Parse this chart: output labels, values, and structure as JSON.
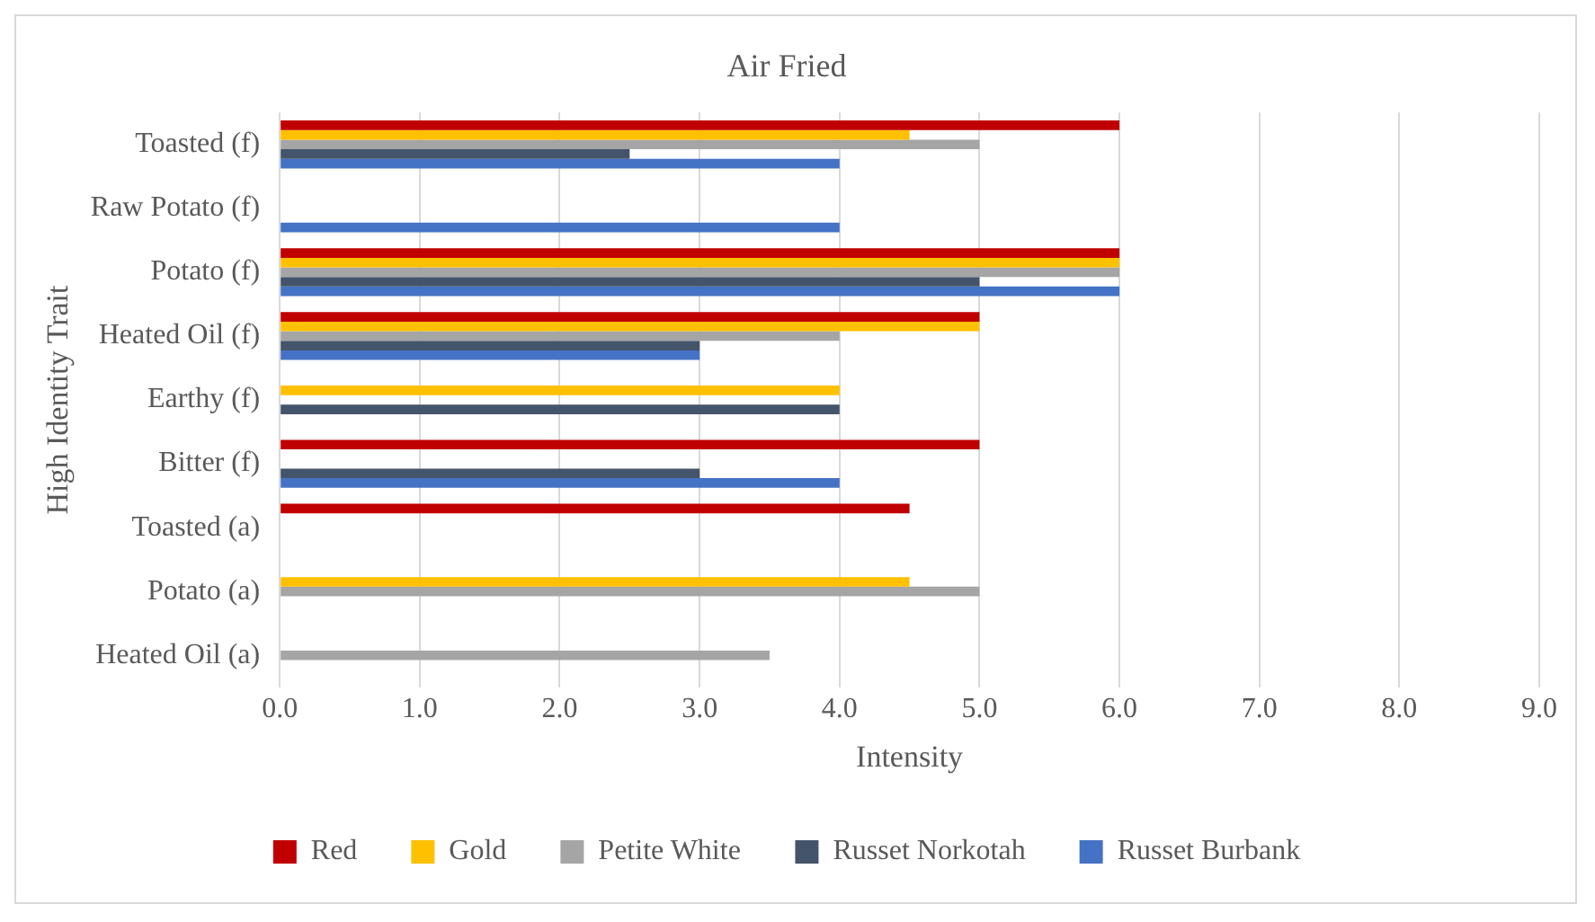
{
  "chart_data": {
    "type": "bar",
    "orientation": "horizontal",
    "title": "Air Fried",
    "xlabel": "Intensity",
    "ylabel": "High Identity Trait",
    "categories": [
      "Toasted (f)",
      "Raw Potato (f)",
      "Potato (f)",
      "Heated Oil (f)",
      "Earthy (f)",
      "Bitter (f)",
      "Toasted (a)",
      "Potato (a)",
      "Heated Oil (a)"
    ],
    "series": [
      {
        "name": "Red",
        "color": "#c00000",
        "values": [
          6,
          null,
          6,
          5,
          null,
          5,
          4.5,
          null,
          null
        ]
      },
      {
        "name": "Gold",
        "color": "#ffc000",
        "values": [
          4.5,
          null,
          6,
          5,
          4,
          null,
          null,
          4.5,
          null
        ]
      },
      {
        "name": "Petite White",
        "color": "#a5a5a5",
        "values": [
          5,
          null,
          6,
          4,
          null,
          null,
          null,
          5,
          3.5
        ]
      },
      {
        "name": "Russet Norkotah",
        "color": "#44546a",
        "values": [
          2.5,
          null,
          5,
          3,
          4,
          3,
          null,
          null,
          null
        ]
      },
      {
        "name": "Russet Burbank",
        "color": "#4472c4",
        "values": [
          4,
          4,
          6,
          3,
          null,
          4,
          null,
          null,
          null
        ]
      }
    ],
    "xlim": [
      0,
      9
    ],
    "xticks": [
      {
        "value": 0,
        "label": "0.0"
      },
      {
        "value": 1,
        "label": "1.0"
      },
      {
        "value": 2,
        "label": "2.0"
      },
      {
        "value": 3,
        "label": "3.0"
      },
      {
        "value": 4,
        "label": "4.0"
      },
      {
        "value": 5,
        "label": "5.0"
      },
      {
        "value": 6,
        "label": "6.0"
      },
      {
        "value": 7,
        "label": "7.0"
      },
      {
        "value": 8,
        "label": "8.0"
      },
      {
        "value": 9,
        "label": "9.0"
      }
    ],
    "grid": "x",
    "legend": "bottom"
  }
}
